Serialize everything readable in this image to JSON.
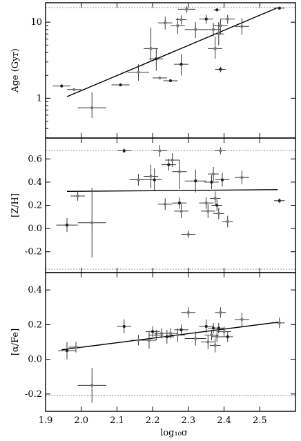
{
  "chart_data": [
    {
      "type": "scatter",
      "panel": "top",
      "ylabel": "Age (Gyr)",
      "xlabel": "",
      "yscale": "log",
      "ylim": [
        0.3,
        18
      ],
      "xlim": [
        1.9,
        2.6
      ],
      "ytick_labels": [
        "1",
        "10"
      ],
      "ytick_values": [
        1,
        10
      ],
      "reference_lines": [
        15.6
      ],
      "fit_line": {
        "x": [
          1.96,
          2.55
        ],
        "y": [
          1.05,
          15.5
        ]
      },
      "points": [
        {
          "x": 1.945,
          "y": 1.45,
          "xerr": 0.025,
          "yerr_lo": 0.05,
          "yerr_hi": 0.05
        },
        {
          "x": 1.98,
          "y": 1.3,
          "xerr": 0.02,
          "yerr_lo": 0.05,
          "yerr_hi": 0.05
        },
        {
          "x": 2.03,
          "y": 0.75,
          "xerr": 0.04,
          "yerr_lo": 0.2,
          "yerr_hi": 0.45
        },
        {
          "x": 2.11,
          "y": 1.5,
          "xerr": 0.025,
          "yerr_lo": 0.05,
          "yerr_hi": 0.05
        },
        {
          "x": 2.16,
          "y": 2.2,
          "xerr": 0.03,
          "yerr_lo": 0.5,
          "yerr_hi": 0.6
        },
        {
          "x": 2.195,
          "y": 4.5,
          "xerr": 0.02,
          "yerr_lo": 1.5,
          "yerr_hi": 4.0
        },
        {
          "x": 2.21,
          "y": 3.3,
          "xerr": 0.02,
          "yerr_lo": 1.0,
          "yerr_hi": 1.2
        },
        {
          "x": 2.22,
          "y": 1.85,
          "xerr": 0.02,
          "yerr_lo": 0.05,
          "yerr_hi": 0.05
        },
        {
          "x": 2.235,
          "y": 9.8,
          "xerr": 0.02,
          "yerr_lo": 1.8,
          "yerr_hi": 2.0
        },
        {
          "x": 2.25,
          "y": 1.7,
          "xerr": 0.02,
          "yerr_lo": 0.05,
          "yerr_hi": 0.05
        },
        {
          "x": 2.27,
          "y": 9.0,
          "xerr": 0.02,
          "yerr_lo": 2.0,
          "yerr_hi": 2.5
        },
        {
          "x": 2.28,
          "y": 10.8,
          "xerr": 0.015,
          "yerr_lo": 1.5,
          "yerr_hi": 1.5
        },
        {
          "x": 2.28,
          "y": 2.8,
          "xerr": 0.02,
          "yerr_lo": 0.8,
          "yerr_hi": 1.0
        },
        {
          "x": 2.295,
          "y": 14.8,
          "xerr": 0.025,
          "yerr_lo": 1.5,
          "yerr_hi": 1.5
        },
        {
          "x": 2.32,
          "y": 8.0,
          "xerr": 0.03,
          "yerr_lo": 1.8,
          "yerr_hi": 2.0
        },
        {
          "x": 2.35,
          "y": 11.0,
          "xerr": 0.02,
          "yerr_lo": 1.5,
          "yerr_hi": 1.5
        },
        {
          "x": 2.37,
          "y": 8.0,
          "xerr": 0.02,
          "yerr_lo": 1.5,
          "yerr_hi": 1.8
        },
        {
          "x": 2.375,
          "y": 4.5,
          "xerr": 0.02,
          "yerr_lo": 1.2,
          "yerr_hi": 2.0
        },
        {
          "x": 2.38,
          "y": 14.5,
          "xerr": 0.01,
          "yerr_lo": 0.5,
          "yerr_hi": 0.5
        },
        {
          "x": 2.385,
          "y": 7.0,
          "xerr": 0.015,
          "yerr_lo": 2.0,
          "yerr_hi": 3.0
        },
        {
          "x": 2.39,
          "y": 9.0,
          "xerr": 0.02,
          "yerr_lo": 2.0,
          "yerr_hi": 2.0
        },
        {
          "x": 2.39,
          "y": 2.4,
          "xerr": 0.015,
          "yerr_lo": 0.2,
          "yerr_hi": 0.2
        },
        {
          "x": 2.41,
          "y": 11.0,
          "xerr": 0.02,
          "yerr_lo": 1.5,
          "yerr_hi": 1.5
        },
        {
          "x": 2.45,
          "y": 8.8,
          "xerr": 0.02,
          "yerr_lo": 2.0,
          "yerr_hi": 2.5
        },
        {
          "x": 2.555,
          "y": 15.3,
          "xerr": 0.015,
          "yerr_lo": 0.4,
          "yerr_hi": 0.4
        }
      ]
    },
    {
      "type": "scatter",
      "panel": "middle",
      "ylabel": "[Z/H]",
      "xlabel": "",
      "ylim": [
        -0.38,
        0.78
      ],
      "xlim": [
        1.9,
        2.6
      ],
      "ytick_labels": [
        "-0.2",
        "0.0",
        "0.2",
        "0.4",
        "0.6"
      ],
      "ytick_values": [
        -0.2,
        0.0,
        0.2,
        0.4,
        0.6
      ],
      "reference_lines": [
        0.67,
        -0.35
      ],
      "fit_line": {
        "x": [
          1.96,
          2.55
        ],
        "y": [
          0.32,
          0.335
        ]
      },
      "points": [
        {
          "x": 1.96,
          "y": 0.03,
          "xerr": 0.03,
          "yerr_lo": 0.06,
          "yerr_hi": 0.06
        },
        {
          "x": 1.99,
          "y": 0.28,
          "xerr": 0.02,
          "yerr_lo": 0.04,
          "yerr_hi": 0.04
        },
        {
          "x": 2.03,
          "y": 0.05,
          "xerr": 0.04,
          "yerr_lo": 0.3,
          "yerr_hi": 0.3
        },
        {
          "x": 2.12,
          "y": 0.67,
          "xerr": 0.02,
          "yerr_lo": 0.02,
          "yerr_hi": 0.02
        },
        {
          "x": 2.16,
          "y": 0.42,
          "xerr": 0.025,
          "yerr_lo": 0.05,
          "yerr_hi": 0.05
        },
        {
          "x": 2.195,
          "y": 0.45,
          "xerr": 0.02,
          "yerr_lo": 0.1,
          "yerr_hi": 0.1
        },
        {
          "x": 2.205,
          "y": 0.42,
          "xerr": 0.02,
          "yerr_lo": 0.1,
          "yerr_hi": 0.1
        },
        {
          "x": 2.22,
          "y": 0.67,
          "xerr": 0.02,
          "yerr_lo": 0.05,
          "yerr_hi": 0.05
        },
        {
          "x": 2.235,
          "y": 0.21,
          "xerr": 0.02,
          "yerr_lo": 0.05,
          "yerr_hi": 0.05
        },
        {
          "x": 2.245,
          "y": 0.55,
          "xerr": 0.02,
          "yerr_lo": 0.05,
          "yerr_hi": 0.05
        },
        {
          "x": 2.255,
          "y": 0.59,
          "xerr": 0.02,
          "yerr_lo": 0.06,
          "yerr_hi": 0.06
        },
        {
          "x": 2.275,
          "y": 0.49,
          "xerr": 0.02,
          "yerr_lo": 0.15,
          "yerr_hi": 0.1
        },
        {
          "x": 2.275,
          "y": 0.22,
          "xerr": 0.02,
          "yerr_lo": 0.05,
          "yerr_hi": 0.05
        },
        {
          "x": 2.28,
          "y": 0.15,
          "xerr": 0.02,
          "yerr_lo": 0.06,
          "yerr_hi": 0.06
        },
        {
          "x": 2.3,
          "y": -0.05,
          "xerr": 0.02,
          "yerr_lo": 0.03,
          "yerr_hi": 0.03
        },
        {
          "x": 2.32,
          "y": 0.41,
          "xerr": 0.03,
          "yerr_lo": 0.1,
          "yerr_hi": 0.1
        },
        {
          "x": 2.35,
          "y": 0.22,
          "xerr": 0.02,
          "yerr_lo": 0.05,
          "yerr_hi": 0.05
        },
        {
          "x": 2.355,
          "y": 0.15,
          "xerr": 0.02,
          "yerr_lo": 0.06,
          "yerr_hi": 0.06
        },
        {
          "x": 2.365,
          "y": 0.4,
          "xerr": 0.02,
          "yerr_lo": 0.06,
          "yerr_hi": 0.06
        },
        {
          "x": 2.37,
          "y": 0.47,
          "xerr": 0.015,
          "yerr_lo": 0.06,
          "yerr_hi": 0.06
        },
        {
          "x": 2.375,
          "y": 0.26,
          "xerr": 0.015,
          "yerr_lo": 0.06,
          "yerr_hi": 0.06
        },
        {
          "x": 2.38,
          "y": 0.2,
          "xerr": 0.015,
          "yerr_lo": 0.05,
          "yerr_hi": 0.05
        },
        {
          "x": 2.385,
          "y": 0.13,
          "xerr": 0.015,
          "yerr_lo": 0.05,
          "yerr_hi": 0.05
        },
        {
          "x": 2.39,
          "y": 0.67,
          "xerr": 0.015,
          "yerr_lo": 0.03,
          "yerr_hi": 0.03
        },
        {
          "x": 2.395,
          "y": 0.42,
          "xerr": 0.02,
          "yerr_lo": 0.06,
          "yerr_hi": 0.06
        },
        {
          "x": 2.41,
          "y": 0.06,
          "xerr": 0.015,
          "yerr_lo": 0.05,
          "yerr_hi": 0.05
        },
        {
          "x": 2.45,
          "y": 0.44,
          "xerr": 0.02,
          "yerr_lo": 0.06,
          "yerr_hi": 0.06
        },
        {
          "x": 2.555,
          "y": 0.24,
          "xerr": 0.015,
          "yerr_lo": 0.02,
          "yerr_hi": 0.02
        }
      ]
    },
    {
      "type": "scatter",
      "panel": "bottom",
      "ylabel": "[α/Fe]",
      "xlabel": "log₁₀σ",
      "ylim": [
        -0.3,
        0.5
      ],
      "xlim": [
        1.9,
        2.6
      ],
      "ytick_labels": [
        "-0.2",
        "0.0",
        "0.2",
        "0.4"
      ],
      "ytick_values": [
        -0.2,
        0.0,
        0.2,
        0.4
      ],
      "xtick_labels": [
        "1.9",
        "2.0",
        "2.1",
        "2.2",
        "2.3",
        "2.4",
        "2.5"
      ],
      "xtick_values": [
        1.9,
        2.0,
        2.1,
        2.2,
        2.3,
        2.4,
        2.5
      ],
      "reference_lines": [
        -0.21
      ],
      "fit_line": {
        "x": [
          1.945,
          2.555
        ],
        "y": [
          0.055,
          0.215
        ]
      },
      "points": [
        {
          "x": 1.96,
          "y": 0.05,
          "xerr": 0.025,
          "yerr_lo": 0.05,
          "yerr_hi": 0.05
        },
        {
          "x": 1.985,
          "y": 0.07,
          "xerr": 0.02,
          "yerr_lo": 0.03,
          "yerr_hi": 0.03
        },
        {
          "x": 2.03,
          "y": -0.15,
          "xerr": 0.04,
          "yerr_lo": 0.1,
          "yerr_hi": 0.1
        },
        {
          "x": 2.12,
          "y": 0.19,
          "xerr": 0.02,
          "yerr_lo": 0.04,
          "yerr_hi": 0.04
        },
        {
          "x": 2.16,
          "y": 0.11,
          "xerr": 0.02,
          "yerr_lo": 0.03,
          "yerr_hi": 0.03
        },
        {
          "x": 2.19,
          "y": 0.11,
          "xerr": 0.02,
          "yerr_lo": 0.05,
          "yerr_hi": 0.05
        },
        {
          "x": 2.2,
          "y": 0.16,
          "xerr": 0.02,
          "yerr_lo": 0.03,
          "yerr_hi": 0.03
        },
        {
          "x": 2.21,
          "y": 0.14,
          "xerr": 0.02,
          "yerr_lo": 0.03,
          "yerr_hi": 0.03
        },
        {
          "x": 2.225,
          "y": 0.15,
          "xerr": 0.02,
          "yerr_lo": 0.03,
          "yerr_hi": 0.03
        },
        {
          "x": 2.24,
          "y": 0.13,
          "xerr": 0.02,
          "yerr_lo": 0.04,
          "yerr_hi": 0.04
        },
        {
          "x": 2.25,
          "y": 0.15,
          "xerr": 0.02,
          "yerr_lo": 0.03,
          "yerr_hi": 0.03
        },
        {
          "x": 2.27,
          "y": 0.14,
          "xerr": 0.02,
          "yerr_lo": 0.04,
          "yerr_hi": 0.04
        },
        {
          "x": 2.28,
          "y": 0.17,
          "xerr": 0.02,
          "yerr_lo": 0.03,
          "yerr_hi": 0.03
        },
        {
          "x": 2.3,
          "y": 0.27,
          "xerr": 0.02,
          "yerr_lo": 0.03,
          "yerr_hi": 0.03
        },
        {
          "x": 2.32,
          "y": 0.12,
          "xerr": 0.03,
          "yerr_lo": 0.04,
          "yerr_hi": 0.04
        },
        {
          "x": 2.35,
          "y": 0.19,
          "xerr": 0.02,
          "yerr_lo": 0.04,
          "yerr_hi": 0.04
        },
        {
          "x": 2.355,
          "y": 0.1,
          "xerr": 0.02,
          "yerr_lo": 0.04,
          "yerr_hi": 0.04
        },
        {
          "x": 2.365,
          "y": 0.14,
          "xerr": 0.02,
          "yerr_lo": 0.03,
          "yerr_hi": 0.03
        },
        {
          "x": 2.37,
          "y": 0.18,
          "xerr": 0.015,
          "yerr_lo": 0.03,
          "yerr_hi": 0.03
        },
        {
          "x": 2.375,
          "y": 0.08,
          "xerr": 0.015,
          "yerr_lo": 0.04,
          "yerr_hi": 0.04
        },
        {
          "x": 2.38,
          "y": 0.13,
          "xerr": 0.015,
          "yerr_lo": 0.03,
          "yerr_hi": 0.03
        },
        {
          "x": 2.385,
          "y": 0.18,
          "xerr": 0.015,
          "yerr_lo": 0.03,
          "yerr_hi": 0.03
        },
        {
          "x": 2.39,
          "y": 0.27,
          "xerr": 0.015,
          "yerr_lo": 0.03,
          "yerr_hi": 0.03
        },
        {
          "x": 2.4,
          "y": 0.16,
          "xerr": 0.02,
          "yerr_lo": 0.03,
          "yerr_hi": 0.03
        },
        {
          "x": 2.41,
          "y": 0.13,
          "xerr": 0.015,
          "yerr_lo": 0.03,
          "yerr_hi": 0.03
        },
        {
          "x": 2.45,
          "y": 0.23,
          "xerr": 0.02,
          "yerr_lo": 0.04,
          "yerr_hi": 0.04
        },
        {
          "x": 2.555,
          "y": 0.21,
          "xerr": 0.015,
          "yerr_lo": 0.03,
          "yerr_hi": 0.03
        }
      ]
    }
  ]
}
